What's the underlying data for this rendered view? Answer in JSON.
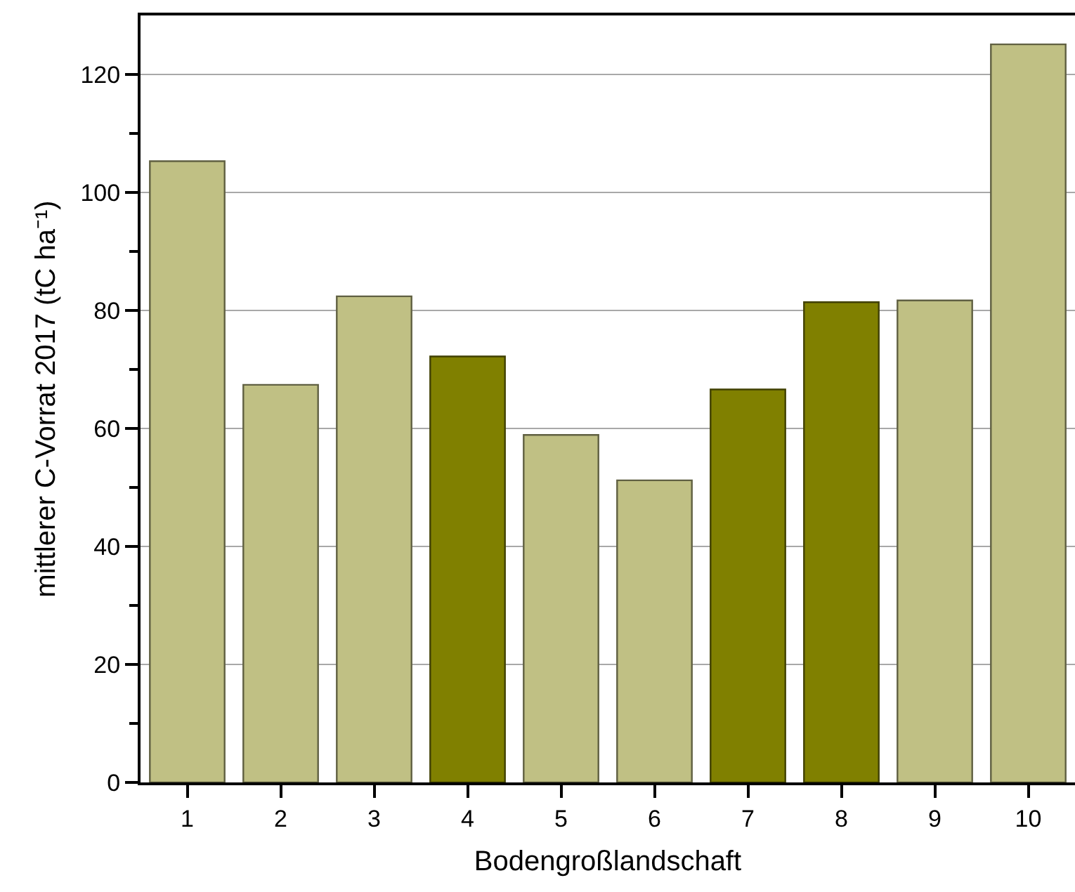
{
  "chart_data": {
    "type": "bar",
    "xlabel": "Bodengroßlandschaft",
    "ylabel": "mittlerer C-Vorrat 2017 (tC ha⁻¹)",
    "categories": [
      "1",
      "2",
      "3",
      "4",
      "5",
      "6",
      "7",
      "8",
      "9",
      "10"
    ],
    "values": [
      105.3,
      67.4,
      82.4,
      72.2,
      58.9,
      51.2,
      66.6,
      81.4,
      81.7,
      125.1
    ],
    "colors": [
      "#c0c084",
      "#c0c084",
      "#c0c084",
      "#808000",
      "#c0c084",
      "#c0c084",
      "#808000",
      "#808000",
      "#c0c084",
      "#c0c084"
    ],
    "ylim": [
      0,
      130
    ],
    "yticks": [
      0,
      {
        "value": 10,
        "label": null
      },
      20,
      {
        "value": 30,
        "label": null
      },
      40,
      {
        "value": 50,
        "label": null
      },
      60,
      {
        "value": 70,
        "label": null
      },
      80,
      {
        "value": 90,
        "label": null
      },
      100,
      {
        "value": 110,
        "label": null
      },
      120
    ],
    "grid": "y"
  }
}
